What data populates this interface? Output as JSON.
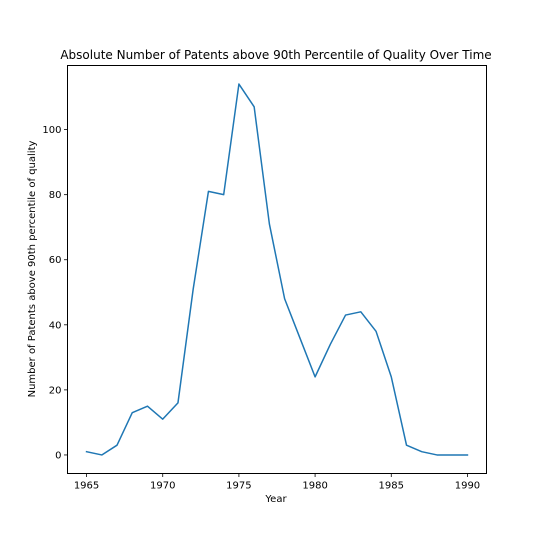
{
  "chart_data": {
    "type": "line",
    "title": "Absolute Number of Patents above 90th Percentile of Quality Over Time",
    "xlabel": "Year",
    "ylabel": "Number of Patents above 90th percentile of quality",
    "xlim": [
      1963.75,
      1991.25
    ],
    "ylim": [
      -5.7,
      119.7
    ],
    "xticks": [
      1965,
      1970,
      1975,
      1980,
      1985,
      1990
    ],
    "yticks": [
      0,
      20,
      40,
      60,
      80,
      100
    ],
    "grid": false,
    "legend": "none",
    "series": [
      {
        "color": "#1f77b4",
        "x": [
          1965,
          1966,
          1967,
          1968,
          1969,
          1970,
          1971,
          1972,
          1973,
          1974,
          1975,
          1976,
          1977,
          1978,
          1979,
          1980,
          1981,
          1982,
          1983,
          1984,
          1985,
          1986,
          1987,
          1988,
          1989,
          1990
        ],
        "values": [
          1,
          0,
          3,
          13,
          15,
          11,
          16,
          51,
          81,
          80,
          114,
          107,
          71,
          48,
          36,
          24,
          34,
          43,
          44,
          38,
          24,
          3,
          1,
          0,
          0,
          0
        ]
      }
    ]
  }
}
